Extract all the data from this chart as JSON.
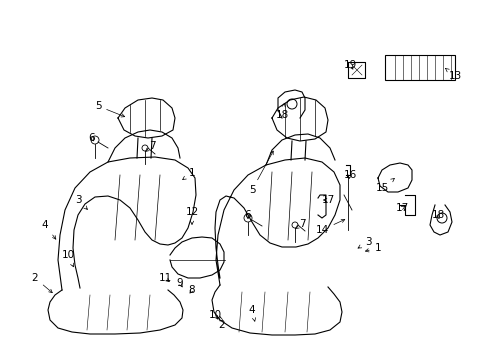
{
  "title": "",
  "background_color": "#ffffff",
  "line_color": "#000000",
  "label_color": "#000000",
  "labels": {
    "1a": [
      1,
      [
        185,
        175
      ]
    ],
    "1b": [
      1,
      [
        370,
        248
      ]
    ],
    "2a": [
      2,
      [
        38,
        278
      ]
    ],
    "2b": [
      2,
      [
        218,
        325
      ]
    ],
    "3a": [
      3,
      [
        82,
        202
      ]
    ],
    "3b": [
      3,
      [
        362,
        243
      ]
    ],
    "4a": [
      4,
      [
        50,
        228
      ]
    ],
    "4b": [
      4,
      [
        248,
        310
      ]
    ],
    "5a": [
      5,
      [
        100,
        108
      ]
    ],
    "5b": [
      5,
      [
        256,
        192
      ]
    ],
    "6a": [
      6,
      [
        96,
        140
      ]
    ],
    "6b": [
      6,
      [
        252,
        218
      ]
    ],
    "7a": [
      7,
      [
        148,
        148
      ]
    ],
    "7b": [
      7,
      [
        298,
        226
      ]
    ],
    "8": [
      8,
      [
        188,
        292
      ]
    ],
    "9": [
      9,
      [
        178,
        285
      ]
    ],
    "10a": [
      10,
      [
        72,
        258
      ]
    ],
    "10b": [
      10,
      [
        215,
        315
      ]
    ],
    "11": [
      11,
      [
        168,
        280
      ]
    ],
    "12": [
      12,
      [
        188,
        215
      ]
    ],
    "13": [
      13,
      [
        448,
        78
      ]
    ],
    "14": [
      14,
      [
        318,
        232
      ]
    ],
    "15": [
      15,
      [
        378,
        190
      ]
    ],
    "16": [
      16,
      [
        348,
        178
      ]
    ],
    "17a": [
      17,
      [
        328,
        202
      ]
    ],
    "17b": [
      17,
      [
        398,
        210
      ]
    ],
    "18a": [
      18,
      [
        285,
        118
      ]
    ],
    "18b": [
      18,
      [
        435,
        218
      ]
    ],
    "19": [
      19,
      [
        348,
        68
      ]
    ]
  }
}
